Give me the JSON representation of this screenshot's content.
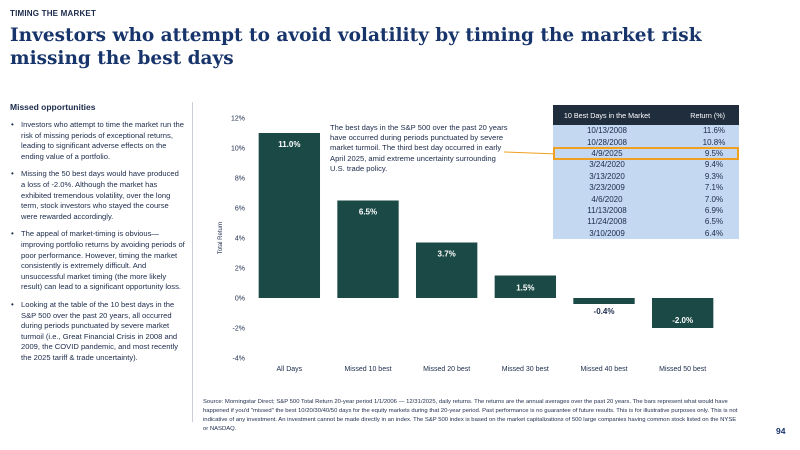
{
  "eyebrow": "TIMING THE MARKET",
  "headline": "Investors who attempt to avoid volatility by timing the market risk missing the best days",
  "left": {
    "title": "Missed opportunities",
    "bullets": [
      "Investors who attempt to time the market run the risk of missing periods of exceptional returns, leading to significant adverse effects on the ending value of a portfolio.",
      "Missing the 50 best days would have produced a loss of -2.0%. Although the market has exhibited tremendous volatility, over the long term, stock investors who stayed the course were rewarded accordingly.",
      "The appeal of market-timing is obvious—improving portfolio returns by avoiding periods of poor performance. However, timing the market consistently is extremely difficult. And unsuccessful market timing (the more likely result) can lead to a significant opportunity loss.",
      "Looking at the table of the 10 best days in the S&P 500 over the past 20 years, all occurred during periods punctuated by severe market turmoil (i.e., Great Financial Crisis in 2008 and 2009, the COVID pandemic, and most recently the 2025 tariff & trade uncertainty)."
    ]
  },
  "annotation": "The best days in the S&P 500 over the past 20 years have occurred during periods punctuated by severe market turmoil. The third best day occurred in early April 2025, amid extreme uncertainty surrounding U.S. trade policy.",
  "table": {
    "headers": [
      "10 Best Days in the Market",
      "Return (%)"
    ],
    "rows": [
      [
        "10/13/2008",
        "11.6%"
      ],
      [
        "10/28/2008",
        "10.8%"
      ],
      [
        "4/9/2025",
        "9.5%"
      ],
      [
        "3/24/2020",
        "9.4%"
      ],
      [
        "3/13/2020",
        "9.3%"
      ],
      [
        "3/23/2009",
        "7.1%"
      ],
      [
        "4/6/2020",
        "7.0%"
      ],
      [
        "11/13/2008",
        "6.9%"
      ],
      [
        "11/24/2008",
        "6.5%"
      ],
      [
        "3/10/2009",
        "6.4%"
      ]
    ],
    "highlight_row": 2
  },
  "chart_data": {
    "type": "bar",
    "categories": [
      "All Days",
      "Missed 10 best",
      "Missed 20 best",
      "Missed 30 best",
      "Missed 40 best",
      "Missed 50 best"
    ],
    "values": [
      11.0,
      6.5,
      3.7,
      1.5,
      -0.4,
      -2.0
    ],
    "data_labels": [
      "11.0%",
      "6.5%",
      "3.7%",
      "1.5%",
      "-0.4%",
      "-2.0%"
    ],
    "ylabel": "Total Return",
    "ylim": [
      -4,
      12
    ],
    "yticks": [
      -4,
      -2,
      0,
      2,
      4,
      6,
      8,
      10,
      12
    ],
    "ytick_labels": [
      "-4%",
      "-2%",
      "0%",
      "2%",
      "4%",
      "6%",
      "8%",
      "10%",
      "12%"
    ],
    "bar_color": "#1b4a46",
    "grid": false
  },
  "source": "Source: Morningstar Direct; S&P 500 Total Return 20-year period 1/1/2006 — 12/31/2025, daily returns. The returns are the annual averages over the past 20 years. The bars represent what would have happened if you'd \"missed\" the best 10/20/30/40/50 days for the equity markets during that 20-year period. Past performance is no guarantee of future results. This is for illustrative purposes only. This is not indicative of any investment. An investment cannot be made directly in an index. The S&P 500 index is based on the market capitalizations of 500 large companies having common stock listed on the NYSE or NASDAQ.",
  "page_number": "94",
  "colors": {
    "headline": "#17346b",
    "table_header": "#1f2d3d",
    "table_cell": "#c5d8f2",
    "highlight": "#f0a020"
  }
}
